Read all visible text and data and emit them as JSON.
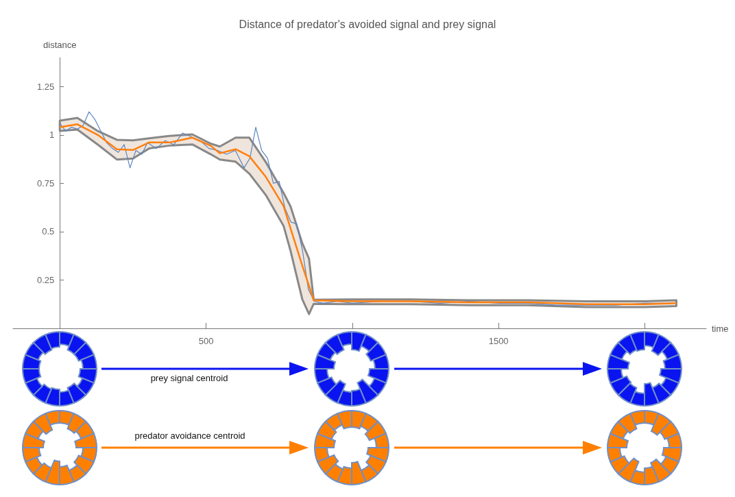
{
  "chart_data": {
    "type": "line",
    "title": "Distance of predator's avoided signal and prey signal",
    "xlabel": "time",
    "ylabel": "distance",
    "xlim": [
      -160,
      2210
    ],
    "xticks": [
      {
        "value": 500,
        "label": "500"
      },
      {
        "value": 1000,
        "label": null
      },
      {
        "value": 1500,
        "label": "1500"
      },
      {
        "value": 2000,
        "label": null
      }
    ],
    "ylim": [
      0,
      1.4
    ],
    "yticks": [
      0.25,
      0.5,
      0.75,
      1,
      1.25
    ],
    "grid": false,
    "marker": "none",
    "line_style": "solid",
    "annotations": [
      "prey signal centroid",
      "predator avoidance centroid"
    ],
    "series": [
      {
        "color": "#5b84c4",
        "x": [
          0,
          20,
          40,
          60,
          80,
          100,
          120,
          140,
          160,
          180,
          200,
          220,
          240,
          260,
          280,
          300,
          330,
          360,
          390,
          420,
          450,
          480,
          510,
          540,
          570,
          600,
          630,
          650,
          670,
          690,
          710,
          730,
          750,
          770,
          790,
          810,
          830,
          850,
          870,
          900,
          950,
          1000,
          1100,
          1200,
          1300,
          1400,
          1500,
          1600,
          1700,
          1800,
          1900,
          2000,
          2100
        ],
        "values": [
          1.06,
          1.02,
          1.04,
          1.03,
          1.05,
          1.12,
          1.08,
          1.02,
          0.96,
          0.93,
          0.91,
          0.95,
          0.83,
          0.92,
          0.9,
          0.96,
          0.93,
          0.97,
          0.95,
          1.01,
          0.99,
          0.97,
          0.93,
          0.92,
          0.9,
          0.92,
          0.83,
          0.88,
          1.04,
          0.92,
          0.88,
          0.75,
          0.76,
          0.62,
          0.55,
          0.54,
          0.4,
          0.2,
          0.14,
          0.13,
          0.14,
          0.13,
          0.14,
          0.14,
          0.13,
          0.14,
          0.13,
          0.13,
          0.12,
          0.12,
          0.12,
          0.13,
          0.13
        ]
      },
      {
        "color": "#ff7f0e",
        "x": [
          0,
          60,
          130,
          195,
          250,
          305,
          375,
          453,
          516,
          547,
          601,
          648,
          704,
          765,
          789,
          829,
          852,
          868,
          1000,
          1200,
          1400,
          1600,
          1800,
          2000,
          2108
        ],
        "values": [
          1.04,
          1.055,
          1.0,
          0.926,
          0.922,
          0.961,
          0.961,
          0.986,
          0.944,
          0.905,
          0.926,
          0.89,
          0.784,
          0.632,
          0.516,
          0.325,
          0.22,
          0.145,
          0.14,
          0.14,
          0.135,
          0.135,
          0.125,
          0.125,
          0.13
        ],
        "upper": [
          1.074,
          1.088,
          1.02,
          0.975,
          0.972,
          0.983,
          0.995,
          1.003,
          0.955,
          0.94,
          0.986,
          0.986,
          0.86,
          0.7,
          0.63,
          0.44,
          0.36,
          0.148,
          0.15,
          0.15,
          0.145,
          0.145,
          0.14,
          0.14,
          0.145
        ],
        "lower": [
          1.021,
          1.028,
          0.95,
          0.873,
          0.878,
          0.93,
          0.945,
          0.951,
          0.9,
          0.873,
          0.862,
          0.8,
          0.69,
          0.53,
          0.4,
          0.15,
          0.074,
          0.127,
          0.125,
          0.125,
          0.12,
          0.12,
          0.11,
          0.11,
          0.115
        ]
      }
    ]
  }
}
